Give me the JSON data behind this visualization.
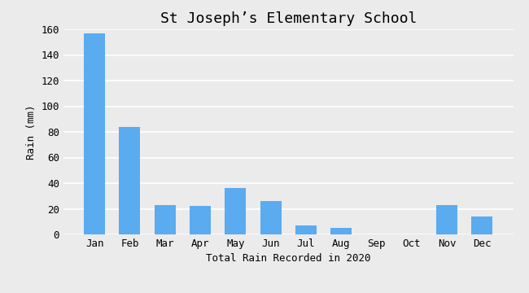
{
  "title": "St Joseph’s Elementary School",
  "xlabel": "Total Rain Recorded in 2020",
  "ylabel": "Rain (mm)",
  "categories": [
    "Jan",
    "Feb",
    "Mar",
    "Apr",
    "May",
    "Jun",
    "Jul",
    "Aug",
    "Sep",
    "Oct",
    "Nov",
    "Dec"
  ],
  "values": [
    157,
    84,
    23,
    22,
    36,
    26,
    7,
    5,
    0,
    0,
    23,
    14
  ],
  "bar_color": "#5aabf0",
  "ylim": [
    0,
    160
  ],
  "yticks": [
    0,
    20,
    40,
    60,
    80,
    100,
    120,
    140,
    160
  ],
  "background_color": "#ebebeb",
  "plot_background": "#ebebeb",
  "title_fontsize": 13,
  "label_fontsize": 9,
  "tick_fontsize": 9
}
